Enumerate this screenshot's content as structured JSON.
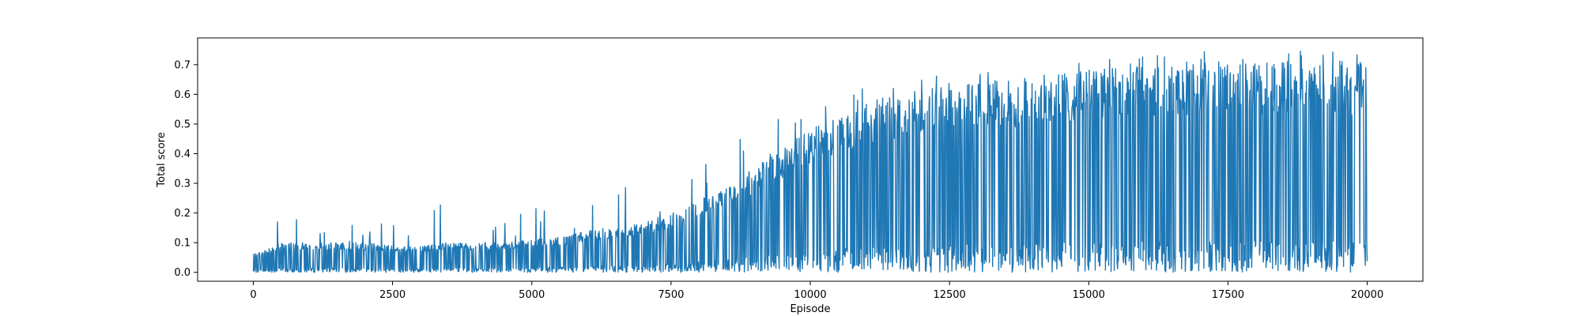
{
  "chart_data": {
    "type": "line",
    "title": "",
    "xlabel": "Episode",
    "ylabel": "Total score",
    "xlim": [
      -1000,
      21000
    ],
    "ylim": [
      -0.03,
      0.79
    ],
    "x_ticks": [
      0,
      2500,
      5000,
      7500,
      10000,
      12500,
      15000,
      17500,
      20000
    ],
    "x_tick_labels": [
      "0",
      "2500",
      "5000",
      "7500",
      "10000",
      "12500",
      "15000",
      "17500",
      "20000"
    ],
    "y_ticks": [
      0.0,
      0.1,
      0.2,
      0.3,
      0.4,
      0.5,
      0.6,
      0.7
    ],
    "y_tick_labels": [
      "0.0",
      "0.1",
      "0.2",
      "0.3",
      "0.4",
      "0.5",
      "0.6",
      "0.7"
    ],
    "grid": false,
    "legend": "none",
    "line_color": "#1f77b4",
    "series": [
      {
        "x": [
          0,
          500,
          1000,
          1500,
          2000,
          2500,
          3000,
          3500,
          4000,
          4500,
          5000,
          5500,
          6000,
          6500,
          7000,
          7500,
          8000,
          8500,
          9000,
          9500,
          10000,
          10500,
          11000,
          11500,
          12000,
          12500,
          13000,
          13500,
          14000,
          14500,
          15000,
          15500,
          16000,
          16500,
          17000,
          17500,
          18000,
          18500,
          19000,
          19500,
          20000
        ],
        "upper_envelope": [
          0.16,
          0.29,
          0.29,
          0.27,
          0.2,
          0.18,
          0.15,
          0.31,
          0.2,
          0.18,
          0.26,
          0.2,
          0.26,
          0.26,
          0.36,
          0.3,
          0.35,
          0.47,
          0.47,
          0.54,
          0.56,
          0.6,
          0.63,
          0.65,
          0.68,
          0.72,
          0.68,
          0.67,
          0.67,
          0.69,
          0.74,
          0.72,
          0.73,
          0.74,
          0.76,
          0.74,
          0.74,
          0.75,
          0.75,
          0.74,
          0.73
        ],
        "lower_envelope": [
          0.0,
          0.0,
          0.0,
          0.0,
          0.0,
          0.0,
          0.0,
          0.0,
          0.0,
          0.0,
          0.0,
          0.0,
          0.0,
          0.0,
          0.0,
          0.0,
          0.0,
          0.0,
          0.0,
          0.0,
          0.0,
          0.0,
          0.0,
          0.0,
          0.0,
          0.0,
          0.0,
          0.0,
          0.0,
          0.0,
          0.0,
          0.0,
          0.0,
          0.0,
          0.0,
          0.0,
          0.0,
          0.0,
          0.0,
          0.0,
          0.0
        ],
        "typical_upper": [
          0.06,
          0.1,
          0.1,
          0.1,
          0.1,
          0.09,
          0.09,
          0.1,
          0.1,
          0.1,
          0.11,
          0.12,
          0.14,
          0.15,
          0.17,
          0.2,
          0.25,
          0.3,
          0.35,
          0.42,
          0.48,
          0.53,
          0.57,
          0.6,
          0.62,
          0.63,
          0.64,
          0.65,
          0.66,
          0.67,
          0.69,
          0.7,
          0.7,
          0.7,
          0.71,
          0.71,
          0.71,
          0.71,
          0.71,
          0.71,
          0.7
        ]
      }
    ]
  }
}
